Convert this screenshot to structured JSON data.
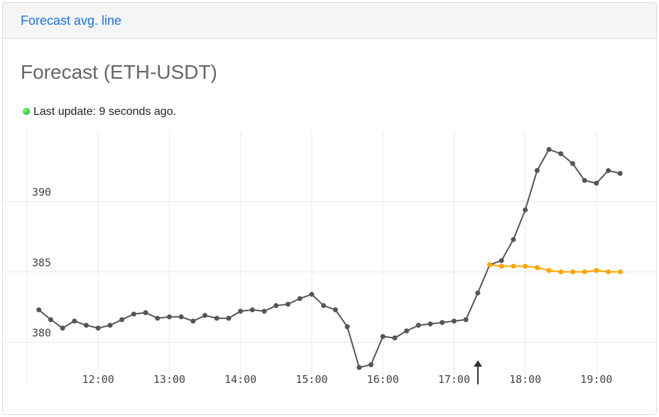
{
  "header": {
    "title": "Forecast avg. line"
  },
  "card": {
    "title": "Forecast (ETH-USDT)",
    "status": "Last update: 9 seconds ago."
  },
  "chart_data": {
    "type": "line",
    "x": [
      670,
      680,
      690,
      700,
      710,
      720,
      730,
      740,
      750,
      760,
      770,
      780,
      790,
      800,
      810,
      820,
      830,
      840,
      850,
      860,
      870,
      880,
      890,
      900,
      910,
      920,
      930,
      940,
      950,
      960,
      970,
      980,
      990,
      1000,
      1010,
      1020,
      1030,
      1040,
      1050,
      1060,
      1070,
      1080,
      1090,
      1100,
      1110,
      1120,
      1130,
      1140,
      1150,
      1160
    ],
    "series": [
      {
        "color": "#555555",
        "values": [
          382.3,
          381.6,
          381.0,
          381.5,
          381.2,
          381.0,
          381.2,
          381.6,
          382.0,
          382.1,
          381.7,
          381.8,
          381.8,
          381.5,
          381.9,
          381.7,
          381.7,
          382.2,
          382.3,
          382.2,
          382.6,
          382.7,
          383.1,
          383.4,
          382.6,
          382.3,
          381.1,
          378.2,
          378.4,
          380.4,
          380.3,
          380.8,
          381.2,
          381.3,
          381.4,
          381.5,
          381.6,
          383.5,
          385.5,
          385.8,
          387.3,
          389.4,
          392.2,
          393.7,
          393.4,
          392.7,
          391.5,
          391.3,
          392.2,
          392.0
        ]
      },
      {
        "color": "#ffa500",
        "values": [
          null,
          null,
          null,
          null,
          null,
          null,
          null,
          null,
          null,
          null,
          null,
          null,
          null,
          null,
          null,
          null,
          null,
          null,
          null,
          null,
          null,
          null,
          null,
          null,
          null,
          null,
          null,
          null,
          null,
          null,
          null,
          null,
          null,
          null,
          null,
          null,
          null,
          null,
          385.5,
          385.4,
          385.4,
          385.4,
          385.3,
          385.1,
          385.0,
          385.0,
          385.0,
          385.1,
          385.0,
          385.0
        ]
      }
    ],
    "xlim": [
      660,
      1170
    ],
    "xticks": [
      {
        "value": 720,
        "label": "12:00"
      },
      {
        "value": 780,
        "label": "13:00"
      },
      {
        "value": 840,
        "label": "14:00"
      },
      {
        "value": 900,
        "label": "15:00"
      },
      {
        "value": 960,
        "label": "16:00"
      },
      {
        "value": 1020,
        "label": "17:00"
      },
      {
        "value": 1080,
        "label": "18:00"
      },
      {
        "value": 1140,
        "label": "19:00"
      }
    ],
    "ylim": [
      377.1,
      395
    ],
    "yticks": [
      380,
      385,
      390
    ],
    "grid": true
  }
}
